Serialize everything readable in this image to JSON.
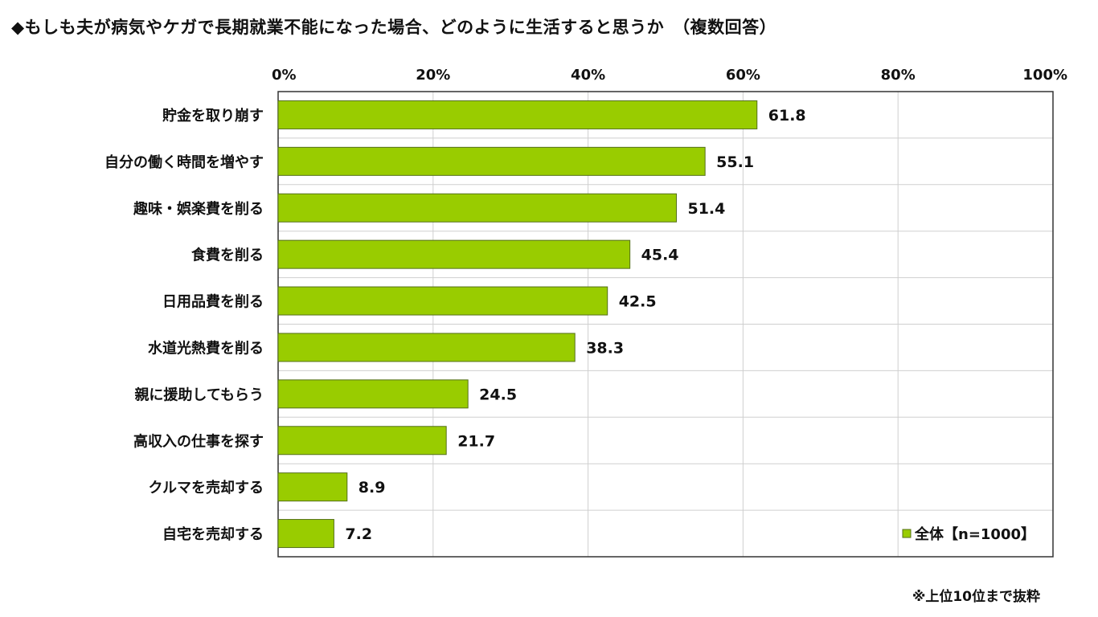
{
  "title": "◆もしも夫が病気やケガで長期就業不能になった場合、どのように生活すると思うか　（複数回答）",
  "footnote": "※上位10位まで抜粋",
  "colors": {
    "bar": "#99cc00",
    "bar_stroke": "#55701a",
    "grid": "#cfcfcf",
    "frame": "#333333"
  },
  "chart_data": {
    "type": "bar",
    "orientation": "horizontal",
    "categories": [
      "貯金を取り崩す",
      "自分の働く時間を増やす",
      "趣味・娯楽費を削る",
      "食費を削る",
      "日用品費を削る",
      "水道光熱費を削る",
      "親に援助してもらう",
      "高収入の仕事を探す",
      "クルマを売却する",
      "自宅を売却する"
    ],
    "series": [
      {
        "name": "全体【n=1000】",
        "values": [
          61.8,
          55.1,
          51.4,
          45.4,
          42.5,
          38.3,
          24.5,
          21.7,
          8.9,
          7.2
        ]
      }
    ],
    "xlim": [
      0,
      100
    ],
    "xticks": [
      "0%",
      "20%",
      "40%",
      "60%",
      "80%",
      "100%"
    ],
    "tick_values": [
      0,
      20,
      40,
      60,
      80,
      100
    ],
    "grid": true,
    "legend_position": "bottom-right",
    "value_labels": [
      "61.8",
      "55.1",
      "51.4",
      "45.4",
      "42.5",
      "38.3",
      "24.5",
      "21.7",
      "8.9",
      "7.2"
    ]
  }
}
